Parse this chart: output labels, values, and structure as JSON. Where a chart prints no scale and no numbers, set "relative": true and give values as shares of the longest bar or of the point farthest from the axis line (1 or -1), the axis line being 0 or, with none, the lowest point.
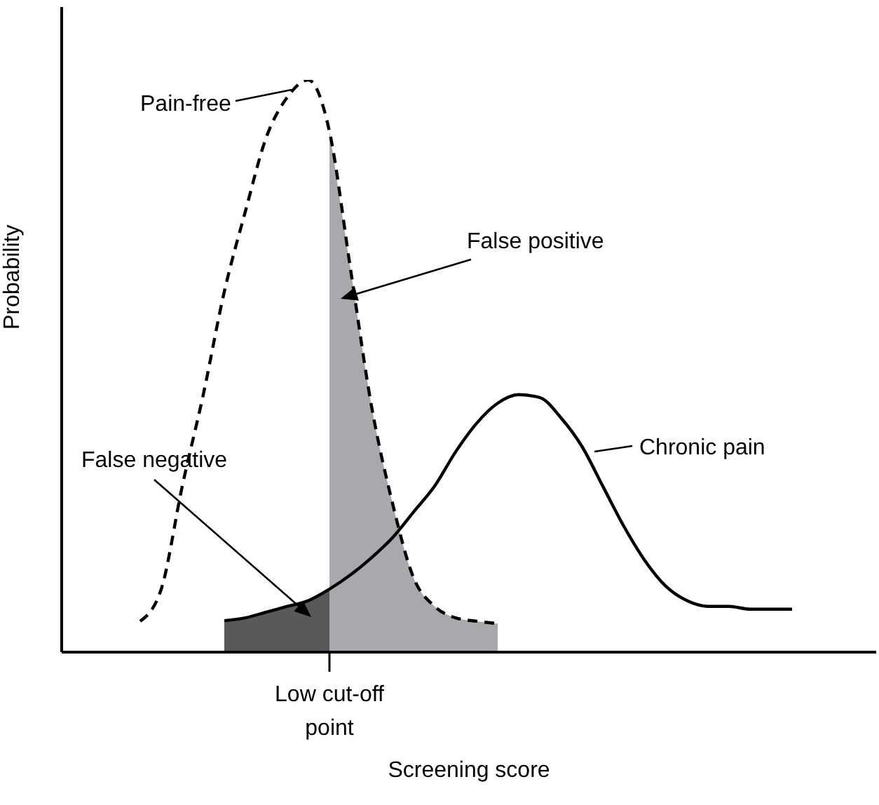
{
  "chart_data": {
    "type": "line",
    "relative": true,
    "xlabel": "Screening score",
    "ylabel": "Probability",
    "categories": [
      null,
      null,
      null,
      null,
      null,
      null,
      null,
      null,
      null,
      null,
      null,
      null,
      null,
      null,
      null,
      null,
      null,
      null,
      null,
      null,
      null,
      null,
      null,
      null,
      null,
      null,
      null,
      null,
      null,
      null,
      null,
      null,
      null
    ],
    "series": [
      {
        "type": "area",
        "color": "#58595b",
        "values": [
          null,
          null,
          null,
          null,
          null,
          0.055,
          0.06,
          0.07,
          0.08,
          0.09,
          0.11,
          null,
          null,
          null,
          null,
          null,
          null,
          null,
          null,
          null,
          null,
          null,
          null,
          null,
          null,
          null,
          null,
          null,
          null,
          null,
          null,
          null,
          null
        ]
      },
      {
        "type": "area",
        "color": "#a7a9ac",
        "values": [
          null,
          null,
          null,
          null,
          null,
          null,
          null,
          null,
          null,
          null,
          0.91,
          0.67,
          0.43,
          0.26,
          0.13,
          0.08,
          0.06,
          0.054,
          0.05,
          null,
          null,
          null,
          null,
          null,
          null,
          null,
          null,
          null,
          null,
          null,
          null,
          null,
          null
        ]
      },
      {
        "name": "Pain-free",
        "color": "#000000",
        "line_style": "dashed",
        "values": [
          null,
          0.054,
          0.11,
          0.29,
          0.45,
          0.63,
          0.77,
          0.9,
          0.97,
          1.0,
          0.91,
          0.67,
          0.43,
          0.26,
          0.13,
          0.08,
          0.06,
          0.054,
          0.05,
          null,
          null,
          null,
          null,
          null,
          null,
          null,
          null,
          null,
          null,
          null,
          null,
          null,
          null
        ]
      },
      {
        "name": "Chronic pain",
        "color": "#000000",
        "line_style": "solid",
        "values": [
          null,
          null,
          null,
          null,
          null,
          0.055,
          0.06,
          0.07,
          0.08,
          0.09,
          0.11,
          0.135,
          0.165,
          0.2,
          0.245,
          0.29,
          0.35,
          0.4,
          0.435,
          0.45,
          0.445,
          0.41,
          0.36,
          0.29,
          0.22,
          0.16,
          0.115,
          0.09,
          0.08,
          0.08,
          0.075,
          0.075,
          0.075
        ]
      }
    ],
    "annotations": [
      "False positive",
      "False negative",
      "Low cut-off point"
    ]
  }
}
